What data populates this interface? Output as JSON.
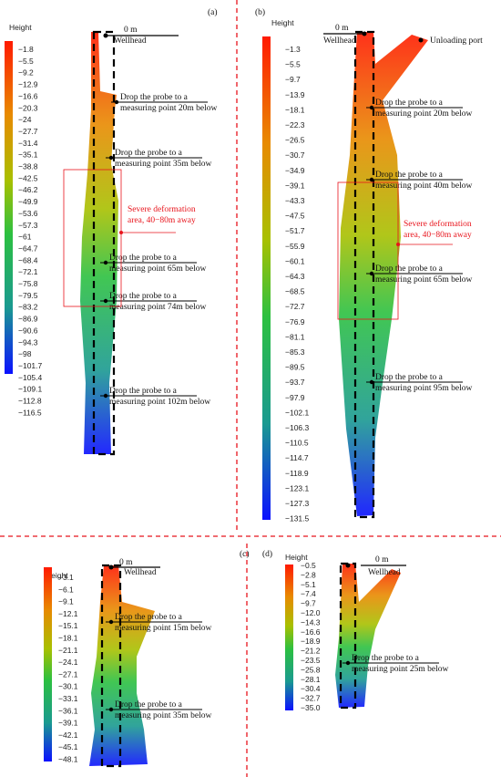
{
  "panels": [
    {
      "label": "(a)",
      "scale_title": "Height",
      "scale_labels": [
        "−1.8",
        "−5.5",
        "−9.2",
        "−12.9",
        "−16.6",
        "−20.3",
        "−24",
        "−27.7",
        "−31.4",
        "−35.1",
        "−38.8",
        "−42.5",
        "−46.2",
        "−49.9",
        "−53.6",
        "−57.3",
        "−61",
        "−64.7",
        "−68.4",
        "−72.1",
        "−75.8",
        "−79.5",
        "−83.2",
        "−86.9",
        "−90.6",
        "−94.3",
        "−98",
        "−101.7",
        "−105.4",
        "−109.1",
        "−112.8",
        "−116.5"
      ],
      "zero": "0 m",
      "wellhead": "Wellhead",
      "notes": [
        [
          "Drop the probe to a",
          "measuring point 20m below"
        ],
        [
          "Drop the probe to a",
          "measuring point 35m below"
        ],
        [
          "Drop the probe to a",
          "measuring point 65m below"
        ],
        [
          "Drop the probe to a",
          "measuring point 74m below"
        ],
        [
          "Drop the probe to a",
          "measuring point 102m below"
        ]
      ],
      "area": [
        "Severe deformation",
        "area, 40−80m away"
      ]
    },
    {
      "label": "(b)",
      "scale_title": "Height",
      "scale_labels": [
        "−1.3",
        "−5.5",
        "−9.7",
        "−13.9",
        "−18.1",
        "−22.3",
        "−26.5",
        "−30.7",
        "−34.9",
        "−39.1",
        "−43.3",
        "−47.5",
        "−51.7",
        "−55.9",
        "−60.1",
        "−64.3",
        "−68.5",
        "−72.7",
        "−76.9",
        "−81.1",
        "−85.3",
        "−89.5",
        "−93.7",
        "−97.9",
        "−102.1",
        "−106.3",
        "−110.5",
        "−114.7",
        "−118.9",
        "−123.1",
        "−127.3",
        "−131.5"
      ],
      "zero": "0 m",
      "wellhead": "Wellhead",
      "port": "Unloading port",
      "notes": [
        [
          "Drop the probe to a",
          "measuring point 20m below"
        ],
        [
          "Drop the probe to a",
          "measuring point 40m below"
        ],
        [
          "Drop the probe to a",
          "measuring point 65m below"
        ],
        [
          "Drop the probe to a",
          "measuring point 95m below"
        ]
      ],
      "area": [
        "Severe deformation",
        "area, 40−80m away"
      ]
    },
    {
      "label": "(c)",
      "scale_title": "Height",
      "scale_labels": [
        "−3.1",
        "−6.1",
        "−9.1",
        "−12.1",
        "−15.1",
        "−18.1",
        "−21.1",
        "−24.1",
        "−27.1",
        "−30.1",
        "−33.1",
        "−36.1",
        "−39.1",
        "−42.1",
        "−45.1",
        "−48.1"
      ],
      "zero": "0 m",
      "wellhead": "Wellhead",
      "notes": [
        [
          "Drop the probe to a",
          "measuring point 15m below"
        ],
        [
          "Drop the probe to a",
          "measuring point 35m below"
        ]
      ]
    },
    {
      "label": "(d)",
      "scale_title": "Height",
      "scale_labels": [
        "−0.5",
        "−2.8",
        "−5.1",
        "−7.4",
        "−9.7",
        "−12.0",
        "−14.3",
        "−16.6",
        "−18.9",
        "−21.2",
        "−23.5",
        "−25.8",
        "−28.1",
        "−30.4",
        "−32.7",
        "−35.0"
      ],
      "zero": "0 m",
      "wellhead": "Wellhead",
      "notes": [
        [
          "Drop the probe to a",
          "measuring point 25m below"
        ]
      ]
    }
  ]
}
